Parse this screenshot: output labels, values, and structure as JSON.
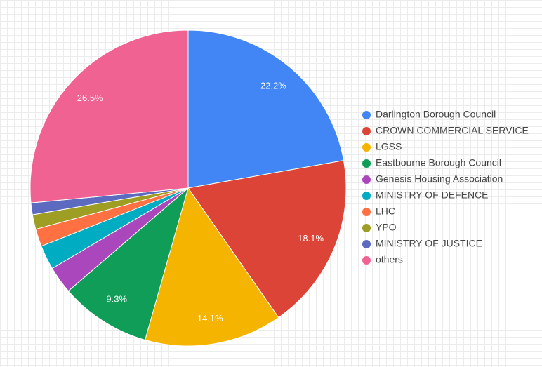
{
  "chart_data": {
    "type": "pie",
    "categories": [
      "Darlington Borough Council",
      "CROWN COMMERCIAL SERVICE",
      "LGSS",
      "Eastbourne Borough Council",
      "Genesis Housing Association",
      "MINISTRY OF DEFENCE",
      "LHC",
      "YPO",
      "MINISTRY OF JUSTICE",
      "others"
    ],
    "values": [
      22.2,
      18.1,
      14.1,
      9.3,
      2.8,
      2.5,
      1.8,
      1.5,
      1.2,
      26.5
    ],
    "value_labels": [
      "22.2%",
      "18.1%",
      "14.1%",
      "9.3%",
      null,
      null,
      null,
      null,
      null,
      "26.5%"
    ],
    "colors": [
      "#4285f4",
      "#db4437",
      "#f4b400",
      "#0f9d58",
      "#ab47bc",
      "#00acc1",
      "#ff7043",
      "#9e9d24",
      "#5c6bc0",
      "#f06292"
    ],
    "legend": "right"
  }
}
